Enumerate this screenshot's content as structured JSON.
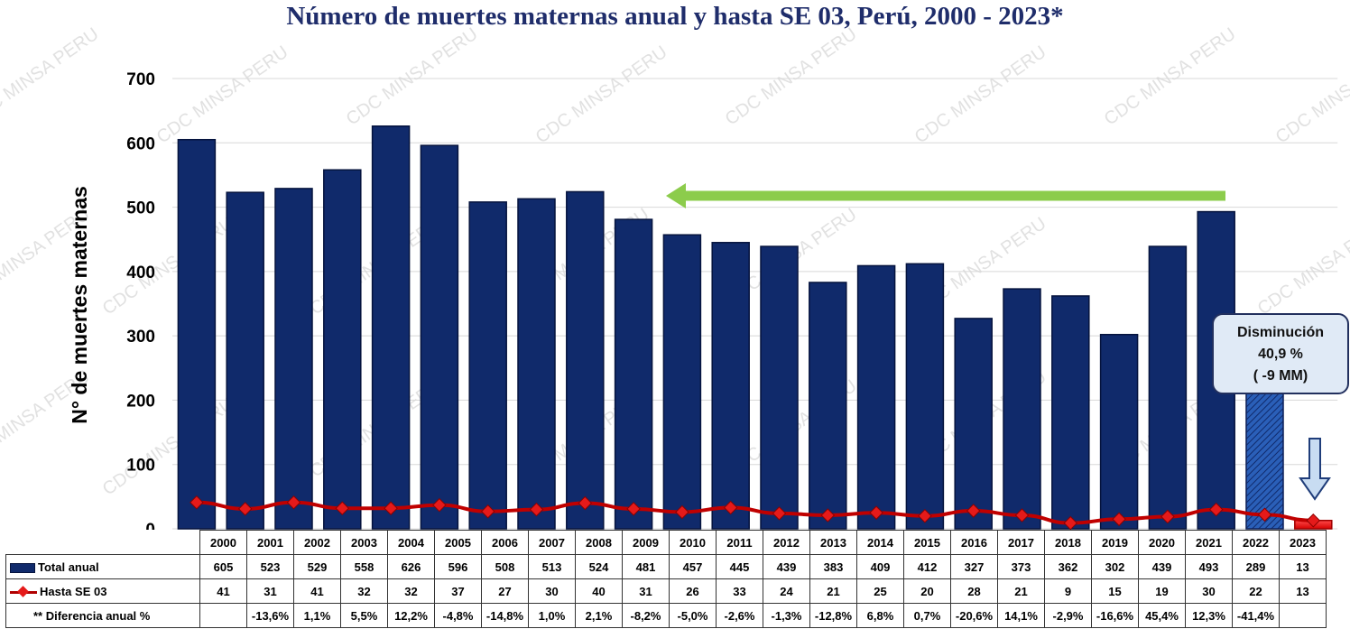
{
  "chart_data": {
    "type": "bar",
    "title": "Número de muertes maternas anual y hasta SE 03, Perú, 2000 - 2023*",
    "ylabel": "N° de muertes  maternas",
    "ylim": [
      0,
      700
    ],
    "yticks": [
      "0",
      "100",
      "200",
      "300",
      "400",
      "500",
      "600",
      "700"
    ],
    "grid": true,
    "categories": [
      "2000",
      "2001",
      "2002",
      "2003",
      "2004",
      "2005",
      "2006",
      "2007",
      "2008",
      "2009",
      "2010",
      "2011",
      "2012",
      "2013",
      "2014",
      "2015",
      "2016",
      "2017",
      "2018",
      "2019",
      "2020",
      "2021",
      "2022",
      "2023"
    ],
    "series": [
      {
        "name": "Total anual",
        "type": "bar",
        "color": "#102a6b",
        "values": [
          605,
          523,
          529,
          558,
          626,
          596,
          508,
          513,
          524,
          481,
          457,
          445,
          439,
          383,
          409,
          412,
          327,
          373,
          362,
          302,
          439,
          493,
          289,
          13
        ]
      },
      {
        "name": "Hasta SE 03",
        "type": "line",
        "color": "#c00000",
        "values": [
          41,
          31,
          41,
          32,
          32,
          37,
          27,
          30,
          40,
          31,
          26,
          33,
          24,
          21,
          25,
          20,
          28,
          21,
          9,
          15,
          19,
          30,
          22,
          13
        ]
      }
    ],
    "diferencia_label": "** Diferencia anual %",
    "diferencia": [
      "",
      "-13,6%",
      "1,1%",
      "5,5%",
      "12,2%",
      "-4,8%",
      "-14,8%",
      "1,0%",
      "2,1%",
      "-8,2%",
      "-5,0%",
      "-2,6%",
      "-1,3%",
      "-12,8%",
      "6,8%",
      "0,7%",
      "-20,6%",
      "14,1%",
      "-2,9%",
      "-16,6%",
      "45,4%",
      "12,3%",
      "-41,4%",
      ""
    ],
    "annotation": {
      "line1": "Disminución",
      "line2": "40,9 %",
      "line3": "( -9 MM)"
    },
    "watermark": "CDC MINSA PERU",
    "colors": {
      "bar": "#102a6b",
      "bar_2022": "#1f4fa0",
      "bar_2023": "#e51a1a",
      "line": "#c00000",
      "arrow_green": "#8ccc4c"
    }
  }
}
